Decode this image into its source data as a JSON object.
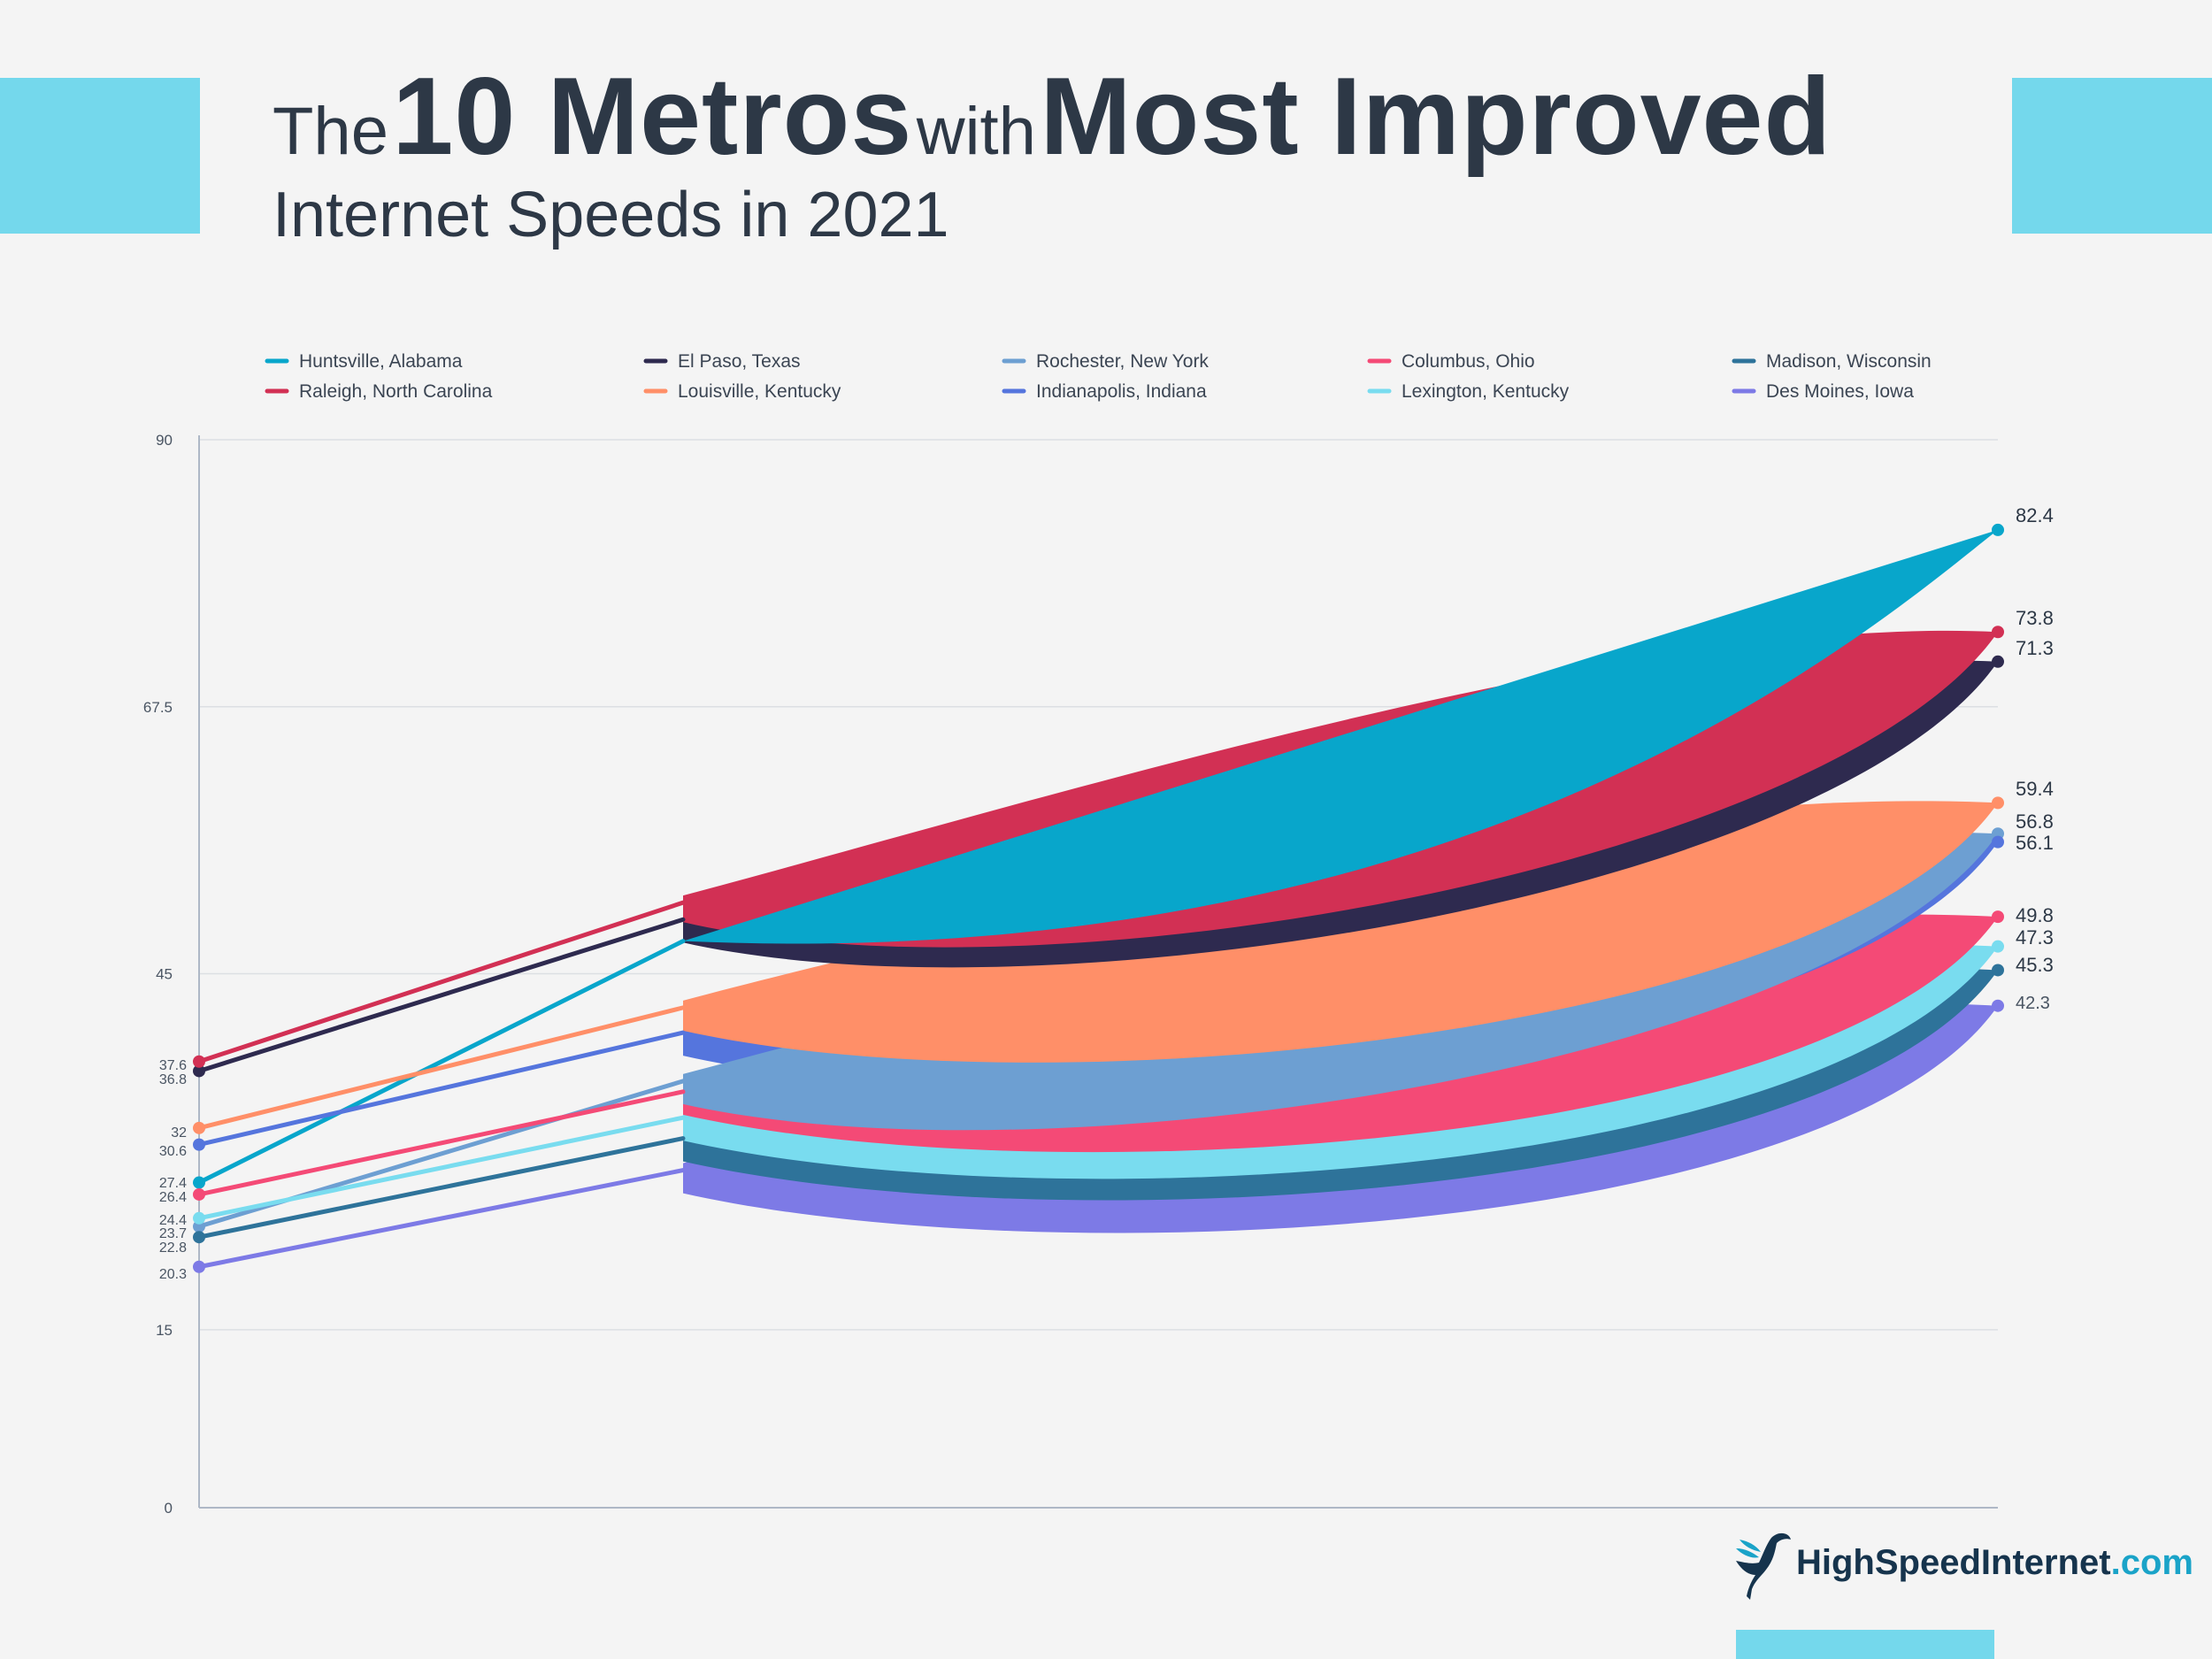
{
  "title": {
    "part1": "The",
    "part2": "10 Metros",
    "part3": "with",
    "part4": "Most Improved",
    "line2": "Internet Speeds in 2021"
  },
  "brand": {
    "name": "HighSpeedInternet",
    "tld": ".com"
  },
  "colors": {
    "accent": "#74d8ec",
    "background": "#f4f4f4",
    "text": "#2d3846"
  },
  "chart_data": {
    "type": "line",
    "title": "The 10 Metros with Most Improved Internet Speeds in 2021",
    "xlabel": "",
    "ylabel": "",
    "ylim": [
      0,
      90
    ],
    "y_ticks": [
      "0",
      "15",
      "45",
      "67.5",
      "90"
    ],
    "grid": true,
    "legend_position": "top",
    "series": [
      {
        "name": "Huntsville, Alabama",
        "color": "#08a6cb",
        "start": 27.4,
        "end": 82.4,
        "start_label": "27.4",
        "end_label": "82.4"
      },
      {
        "name": "El Paso, Texas",
        "color": "#2e2a4f",
        "start": 36.8,
        "end": 71.3,
        "start_label": "36.8",
        "end_label": "71.3"
      },
      {
        "name": "Rochester, New York",
        "color": "#6d9fd2",
        "start": 23.7,
        "end": 56.8,
        "start_label": "23.7",
        "end_label": "56.8"
      },
      {
        "name": "Columbus, Ohio",
        "color": "#f44a76",
        "start": 26.4,
        "end": 49.8,
        "start_label": "26.4",
        "end_label": "49.8"
      },
      {
        "name": "Madison, Wisconsin",
        "color": "#2e739a",
        "start": 22.8,
        "end": 45.3,
        "start_label": "22.8",
        "end_label": "45.3"
      },
      {
        "name": "Raleigh, North Carolina",
        "color": "#d23054",
        "start": 37.6,
        "end": 73.8,
        "start_label": "37.6",
        "end_label": "73.8"
      },
      {
        "name": "Louisville, Kentucky",
        "color": "#ff8f68",
        "start": 32,
        "end": 59.4,
        "start_label": "32",
        "end_label": "59.4"
      },
      {
        "name": "Indianapolis, Indiana",
        "color": "#5575dd",
        "start": 30.6,
        "end": 56.1,
        "start_label": "30.6",
        "end_label": "56.1"
      },
      {
        "name": "Lexington, Kentucky",
        "color": "#79dcef",
        "start": 24.4,
        "end": 47.3,
        "start_label": "24.4",
        "end_label": "47.3"
      },
      {
        "name": "Des Moines, Iowa",
        "color": "#7d7ae6",
        "start": 20.3,
        "end": 42.3,
        "start_label": "20.3",
        "end_label": "42.3"
      }
    ]
  }
}
